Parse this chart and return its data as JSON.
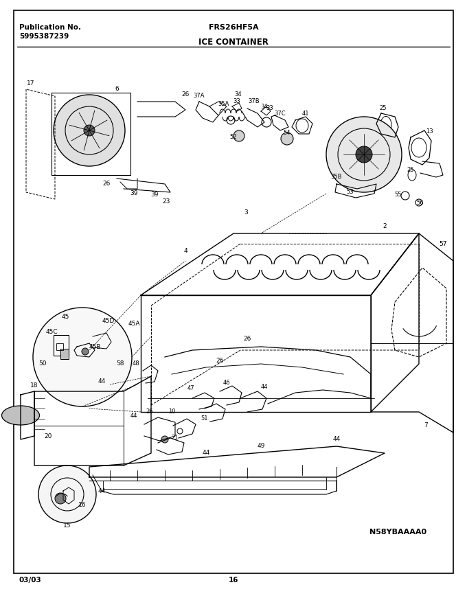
{
  "title_left_line1": "Publication No.",
  "title_left_line2": "5995387239",
  "title_center": "FRS26HF5A",
  "section_title": "ICE CONTAINER",
  "image_code": "N58YBAAAA0",
  "footer_left": "03/03",
  "footer_center": "16",
  "bg_color": "#ffffff",
  "text_color": "#000000",
  "fig_width": 6.8,
  "fig_height": 8.71,
  "dpi": 100
}
